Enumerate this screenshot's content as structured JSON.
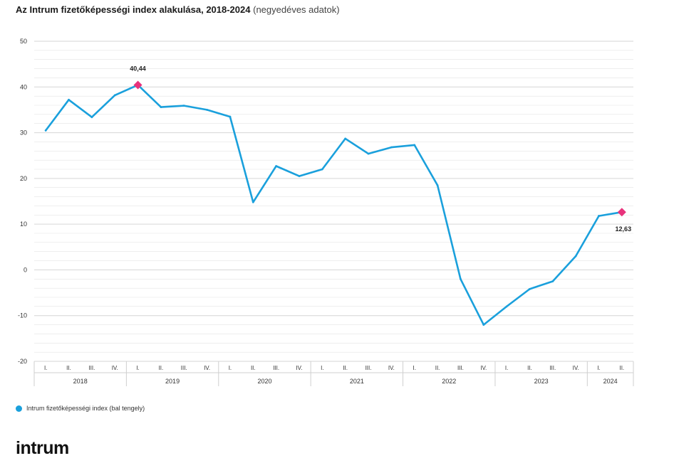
{
  "page": {
    "title_main": "Az Intrum fizetőképességi index alakulása, 2018-2024",
    "title_sub": "(negyedéves adatok)",
    "legend_label": "Intrum fizetőképességi index (bal tengely)",
    "logo_text": "intrum"
  },
  "colors": {
    "line": "#1aa0dc",
    "marker": "#e8337c",
    "grid": "#e3e3e3",
    "axis_text": "#333333"
  },
  "chart_data": {
    "type": "line",
    "title": "Az Intrum fizetőképességi index alakulása, 2018-2024 (negyedéves adatok)",
    "ylim": [
      -20,
      50
    ],
    "yticks": [
      -20,
      -10,
      0,
      10,
      20,
      30,
      40,
      50
    ],
    "grid": true,
    "legend_position": "bottom-left",
    "quarter_labels": [
      "I.",
      "II.",
      "III.",
      "IV.",
      "I.",
      "II.",
      "III.",
      "IV.",
      "I.",
      "II.",
      "III.",
      "IV.",
      "I.",
      "II.",
      "III.",
      "IV.",
      "I.",
      "II.",
      "III.",
      "IV.",
      "I.",
      "II.",
      "III.",
      "IV.",
      "I.",
      "II."
    ],
    "years": [
      {
        "label": "2018",
        "quarters": 4
      },
      {
        "label": "2019",
        "quarters": 4
      },
      {
        "label": "2020",
        "quarters": 4
      },
      {
        "label": "2021",
        "quarters": 4
      },
      {
        "label": "2022",
        "quarters": 4
      },
      {
        "label": "2023",
        "quarters": 4
      },
      {
        "label": "2024",
        "quarters": 2
      }
    ],
    "series": [
      {
        "name": "Intrum fizetőképességi index (bal tengely)",
        "values": [
          30.5,
          37.2,
          33.4,
          38.2,
          40.44,
          35.6,
          35.9,
          35.0,
          33.5,
          14.8,
          22.7,
          20.5,
          22.0,
          28.7,
          25.4,
          26.8,
          27.3,
          18.5,
          -2.0,
          -12.0,
          -8.0,
          -4.2,
          -2.5,
          3.0,
          11.8,
          12.63
        ]
      }
    ],
    "annotations": [
      {
        "index": 4,
        "label": "40,44"
      },
      {
        "index": 25,
        "label": "12,63"
      }
    ]
  }
}
